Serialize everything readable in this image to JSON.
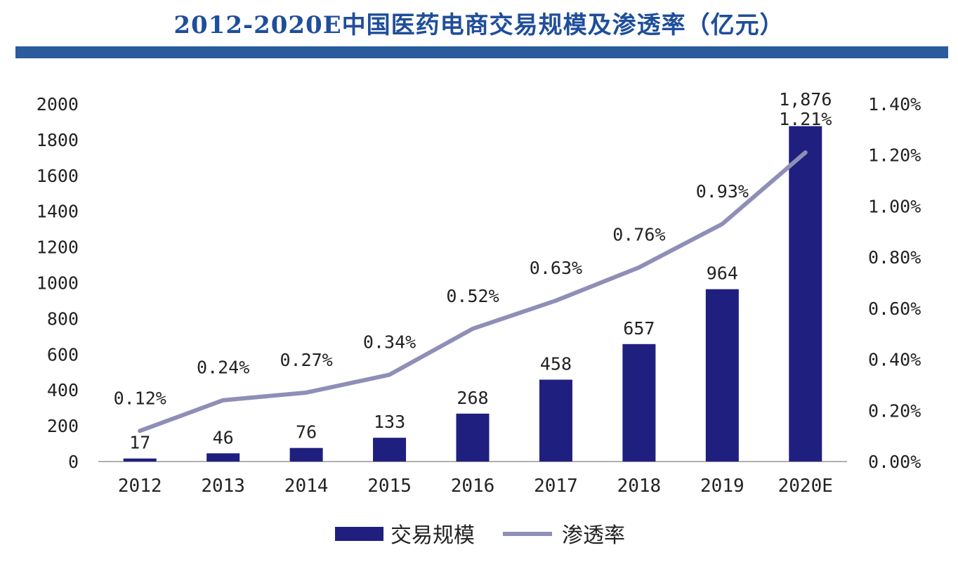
{
  "colors": {
    "title": "#1f4e9a",
    "rule": "#2a5b9c",
    "bar": "#1f1f80",
    "line": "#8e8eb8",
    "axis": "#b0b0b0"
  },
  "chart_data": {
    "type": "bar+line",
    "title": "2012-2020E中国医药电商交易规模及渗透率（亿元）",
    "categories": [
      "2012",
      "2013",
      "2014",
      "2015",
      "2016",
      "2017",
      "2018",
      "2019",
      "2020E"
    ],
    "series": [
      {
        "name": "交易规模",
        "type": "bar",
        "axis": "left",
        "values": [
          17,
          46,
          76,
          133,
          268,
          458,
          657,
          964,
          1876
        ],
        "labels": [
          "17",
          "46",
          "76",
          "133",
          "268",
          "458",
          "657",
          "964",
          "1,876"
        ]
      },
      {
        "name": "渗透率",
        "type": "line",
        "axis": "right",
        "values": [
          0.12,
          0.24,
          0.27,
          0.34,
          0.52,
          0.63,
          0.76,
          0.93,
          1.21
        ],
        "labels": [
          "0.12%",
          "0.24%",
          "0.27%",
          "0.34%",
          "0.52%",
          "0.63%",
          "0.76%",
          "0.93%",
          "1.21%"
        ]
      }
    ],
    "y_left": {
      "ylim": [
        0,
        2000
      ],
      "ticks": [
        "0",
        "200",
        "400",
        "600",
        "800",
        "1000",
        "1200",
        "1400",
        "1600",
        "1800",
        "2000"
      ]
    },
    "y_right": {
      "ylim": [
        0,
        1.4
      ],
      "ticks": [
        "0.00%",
        "0.20%",
        "0.40%",
        "0.60%",
        "0.80%",
        "1.00%",
        "1.20%",
        "1.40%"
      ]
    },
    "legend": {
      "position": "bottom",
      "items": [
        "交易规模",
        "渗透率"
      ]
    },
    "grid": false
  }
}
